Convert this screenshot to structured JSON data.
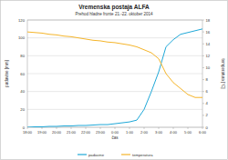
{
  "chart_data": {
    "type": "line",
    "title": "Vremenska postaja ALFA",
    "subtitle": "Prehod hladne fronte 21.-22. oktober 2014",
    "x_label": "čas",
    "y_label": "padavine [mm]",
    "y2_label": "temperatura [°C]",
    "categories": [
      "18:00",
      null,
      "19:00",
      null,
      "20:00",
      null,
      "21:00",
      null,
      "22:00",
      null,
      "23:00",
      null,
      "0:00",
      null,
      "1:00",
      null,
      "2:00",
      null,
      "3:00",
      null,
      "4:00",
      null,
      "5:00",
      null,
      "6:00"
    ],
    "series": [
      {
        "name": "padavine",
        "color": "#1fa8d8",
        "values": [
          0,
          0.5,
          0.5,
          1,
          1,
          1.5,
          1.5,
          2,
          2,
          2.5,
          3,
          3,
          4,
          5,
          6,
          8,
          20,
          40,
          62,
          90,
          98,
          104,
          106,
          108,
          110
        ]
      },
      {
        "name": "temperatura",
        "color": "#f5b52a",
        "axis": "y2",
        "values": [
          16,
          15.9,
          15.8,
          15.6,
          15.5,
          15.3,
          15.2,
          15,
          14.8,
          14.6,
          14.5,
          14.3,
          14.2,
          14,
          13.8,
          13.5,
          13,
          12.5,
          11.5,
          9,
          7.5,
          6.5,
          5.5,
          5,
          5
        ]
      }
    ],
    "ylim": [
      0,
      120
    ],
    "yticks": [
      0,
      20,
      40,
      60,
      80,
      100,
      120
    ],
    "y2lim": [
      0,
      18
    ],
    "y2ticks": [
      0,
      2,
      4,
      6,
      8,
      10,
      12,
      14,
      16,
      18
    ],
    "grid": true,
    "legend": "bottom"
  }
}
